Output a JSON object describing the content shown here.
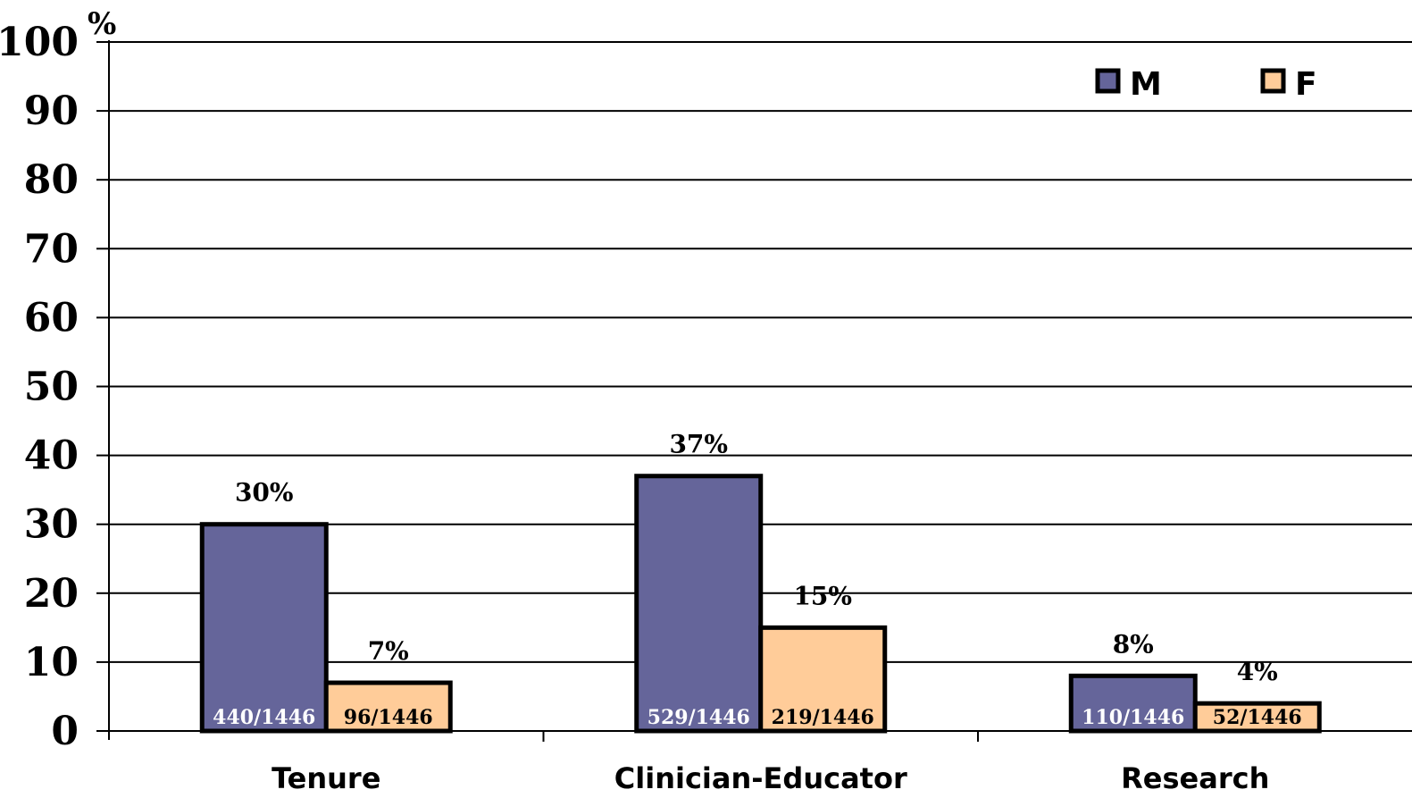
{
  "chart_data": {
    "type": "bar",
    "y_unit_label": "%",
    "ylim": [
      0,
      100
    ],
    "y_ticks": [
      "0",
      "10",
      "20",
      "30",
      "40",
      "50",
      "60",
      "70",
      "80",
      "90",
      "100"
    ],
    "grid": true,
    "legend_position": "top-right",
    "categories": [
      "Tenure",
      "Clinician-Educator",
      "Research"
    ],
    "series": [
      {
        "name": "M",
        "color": "#65659a",
        "values": [
          30,
          37,
          8
        ],
        "value_labels": [
          "30%",
          "37%",
          "8%"
        ],
        "count_labels": [
          "440/1446",
          "529/1446",
          "110/1446"
        ],
        "count_label_color": "#ffffff"
      },
      {
        "name": "F",
        "color": "#ffcc99",
        "values": [
          7,
          15,
          4
        ],
        "value_labels": [
          "7%",
          "15%",
          "4%"
        ],
        "count_labels": [
          "96/1446",
          "219/1446",
          "52/1446"
        ],
        "count_label_color": "#000000"
      }
    ]
  }
}
